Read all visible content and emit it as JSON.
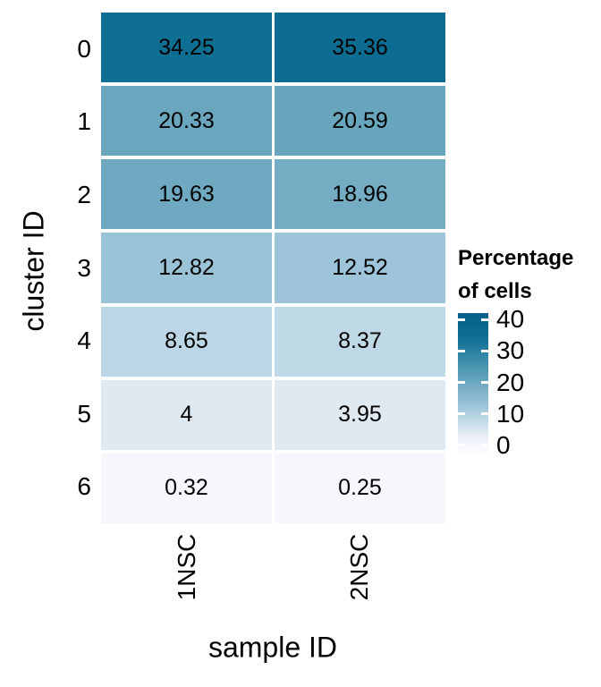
{
  "figure": {
    "x_axis": {
      "title": "sample ID"
    },
    "y_axis": {
      "title": "cluster ID"
    },
    "legend": {
      "title_lines": [
        "Percentage",
        "of cells"
      ]
    }
  },
  "chart_data": {
    "type": "heatmap",
    "title": "",
    "xlabel": "sample ID",
    "ylabel": "cluster ID",
    "x": [
      "1NSC",
      "2NSC"
    ],
    "y": [
      "0",
      "1",
      "2",
      "3",
      "4",
      "5",
      "6"
    ],
    "values": [
      [
        34.25,
        35.36
      ],
      [
        20.33,
        20.59
      ],
      [
        19.63,
        18.96
      ],
      [
        12.82,
        12.52
      ],
      [
        8.65,
        8.37
      ],
      [
        4,
        3.95
      ],
      [
        0.32,
        0.25
      ]
    ],
    "cell_labels": [
      [
        "34.25",
        "35.36"
      ],
      [
        "20.33",
        "20.59"
      ],
      [
        "19.63",
        "18.96"
      ],
      [
        "12.82",
        "12.52"
      ],
      [
        "8.65",
        "8.37"
      ],
      [
        "4",
        "3.95"
      ],
      [
        "0.32",
        "0.25"
      ]
    ],
    "legend_title": "Percentage of cells",
    "legend_tick_values": [
      0,
      10,
      20,
      30,
      40
    ],
    "legend_tick_labels": [
      "0",
      "10",
      "20",
      "30",
      "40"
    ],
    "legend_range": [
      -2,
      42
    ],
    "color_scale": {
      "low": "#f8f8fd",
      "high": "#015f89",
      "stops": [
        [
          0,
          "#f8f8fd"
        ],
        [
          4,
          "#dfe9f2"
        ],
        [
          9,
          "#bad5e4"
        ],
        [
          13,
          "#9ac2d7"
        ],
        [
          20,
          "#6ca8c0"
        ],
        [
          27,
          "#3c8dac"
        ],
        [
          34,
          "#0e6f93"
        ],
        [
          42,
          "#015f89"
        ]
      ]
    },
    "layout_hints": {
      "legend_position": "right",
      "grid": false,
      "x_tick_rotation": 90
    }
  }
}
